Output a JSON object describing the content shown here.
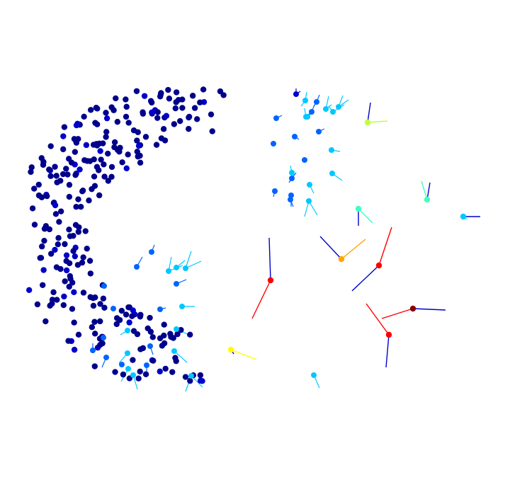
{
  "figure": {
    "background": "#ffffff",
    "marker": "filled-circle",
    "colormap": [
      "#00008b",
      "#0000cd",
      "#0064ff",
      "#00c8ff",
      "#40ffc0",
      "#c0ff40",
      "#ffff00",
      "#ffa500",
      "#ff0000",
      "#8b0000"
    ]
  }
}
